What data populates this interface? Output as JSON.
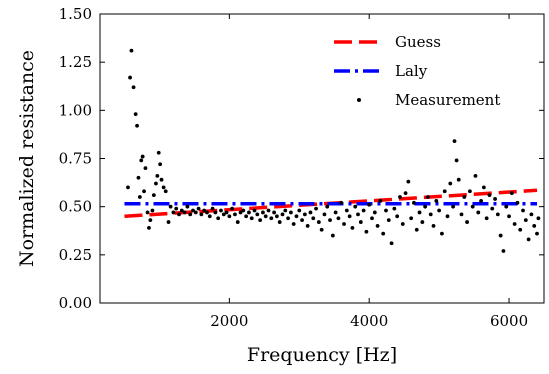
{
  "chart_data": {
    "type": "scatter",
    "xlabel": "Frequency [Hz]",
    "ylabel": "Normalized resistance",
    "xlim": [
      150,
      6500
    ],
    "ylim": [
      0,
      1.5
    ],
    "x_ticks": [
      2000,
      4000,
      6000
    ],
    "x_tick_labels": [
      "2000",
      "4000",
      "6000"
    ],
    "y_ticks": [
      0,
      0.25,
      0.5,
      0.75,
      1.0,
      1.25,
      1.5
    ],
    "y_tick_labels": [
      "0.00",
      "0.25",
      "0.50",
      "0.75",
      "1.00",
      "1.25",
      "1.50"
    ],
    "grid": false,
    "legend_position": "top-right",
    "series": [
      {
        "name": "Guess",
        "kind": "line",
        "style": "dashed",
        "color": "#ff0000",
        "x": [
          500,
          6400
        ],
        "y": [
          0.45,
          0.585
        ]
      },
      {
        "name": "Laly",
        "kind": "line",
        "style": "dash-dot",
        "color": "#0000ff",
        "x": [
          500,
          6400
        ],
        "y": [
          0.515,
          0.515
        ]
      },
      {
        "name": "Measurement",
        "kind": "scatter",
        "color": "#000000",
        "points": [
          [
            550,
            0.6
          ],
          [
            580,
            1.17
          ],
          [
            600,
            1.31
          ],
          [
            630,
            1.12
          ],
          [
            660,
            0.98
          ],
          [
            680,
            0.92
          ],
          [
            700,
            0.65
          ],
          [
            720,
            0.55
          ],
          [
            740,
            0.74
          ],
          [
            760,
            0.76
          ],
          [
            780,
            0.58
          ],
          [
            800,
            0.7
          ],
          [
            830,
            0.47
          ],
          [
            850,
            0.39
          ],
          [
            870,
            0.43
          ],
          [
            900,
            0.48
          ],
          [
            920,
            0.56
          ],
          [
            950,
            0.62
          ],
          [
            970,
            0.66
          ],
          [
            990,
            0.78
          ],
          [
            1010,
            0.72
          ],
          [
            1030,
            0.64
          ],
          [
            1060,
            0.6
          ],
          [
            1090,
            0.58
          ],
          [
            1130,
            0.42
          ],
          [
            1160,
            0.5
          ],
          [
            1200,
            0.47
          ],
          [
            1240,
            0.49
          ],
          [
            1280,
            0.46
          ],
          [
            1320,
            0.48
          ],
          [
            1360,
            0.47
          ],
          [
            1400,
            0.5
          ],
          [
            1440,
            0.46
          ],
          [
            1480,
            0.48
          ],
          [
            1520,
            0.47
          ],
          [
            1560,
            0.49
          ],
          [
            1600,
            0.46
          ],
          [
            1640,
            0.48
          ],
          [
            1680,
            0.47
          ],
          [
            1720,
            0.45
          ],
          [
            1760,
            0.49
          ],
          [
            1800,
            0.47
          ],
          [
            1840,
            0.44
          ],
          [
            1880,
            0.48
          ],
          [
            1920,
            0.46
          ],
          [
            1960,
            0.47
          ],
          [
            2000,
            0.45
          ],
          [
            2040,
            0.49
          ],
          [
            2080,
            0.46
          ],
          [
            2120,
            0.42
          ],
          [
            2160,
            0.47
          ],
          [
            2200,
            0.48
          ],
          [
            2240,
            0.45
          ],
          [
            2280,
            0.47
          ],
          [
            2320,
            0.44
          ],
          [
            2360,
            0.48
          ],
          [
            2400,
            0.46
          ],
          [
            2440,
            0.43
          ],
          [
            2480,
            0.47
          ],
          [
            2520,
            0.45
          ],
          [
            2560,
            0.48
          ],
          [
            2600,
            0.44
          ],
          [
            2640,
            0.47
          ],
          [
            2680,
            0.45
          ],
          [
            2720,
            0.42
          ],
          [
            2760,
            0.46
          ],
          [
            2800,
            0.48
          ],
          [
            2840,
            0.44
          ],
          [
            2880,
            0.47
          ],
          [
            2920,
            0.41
          ],
          [
            2960,
            0.45
          ],
          [
            3000,
            0.48
          ],
          [
            3040,
            0.43
          ],
          [
            3080,
            0.46
          ],
          [
            3120,
            0.4
          ],
          [
            3160,
            0.47
          ],
          [
            3200,
            0.44
          ],
          [
            3240,
            0.49
          ],
          [
            3280,
            0.42
          ],
          [
            3320,
            0.38
          ],
          [
            3360,
            0.46
          ],
          [
            3400,
            0.5
          ],
          [
            3440,
            0.43
          ],
          [
            3480,
            0.35
          ],
          [
            3520,
            0.47
          ],
          [
            3560,
            0.44
          ],
          [
            3600,
            0.52
          ],
          [
            3640,
            0.41
          ],
          [
            3680,
            0.48
          ],
          [
            3720,
            0.45
          ],
          [
            3760,
            0.39
          ],
          [
            3800,
            0.5
          ],
          [
            3840,
            0.46
          ],
          [
            3880,
            0.42
          ],
          [
            3920,
            0.48
          ],
          [
            3960,
            0.37
          ],
          [
            4000,
            0.51
          ],
          [
            4040,
            0.44
          ],
          [
            4080,
            0.47
          ],
          [
            4120,
            0.4
          ],
          [
            4160,
            0.53
          ],
          [
            4200,
            0.36
          ],
          [
            4240,
            0.48
          ],
          [
            4280,
            0.43
          ],
          [
            4320,
            0.31
          ],
          [
            4360,
            0.49
          ],
          [
            4400,
            0.45
          ],
          [
            4440,
            0.55
          ],
          [
            4480,
            0.41
          ],
          [
            4520,
            0.57
          ],
          [
            4560,
            0.63
          ],
          [
            4600,
            0.44
          ],
          [
            4640,
            0.52
          ],
          [
            4680,
            0.38
          ],
          [
            4720,
            0.47
          ],
          [
            4760,
            0.42
          ],
          [
            4800,
            0.5
          ],
          [
            4840,
            0.55
          ],
          [
            4880,
            0.46
          ],
          [
            4920,
            0.4
          ],
          [
            4960,
            0.53
          ],
          [
            5000,
            0.48
          ],
          [
            5040,
            0.36
          ],
          [
            5080,
            0.58
          ],
          [
            5120,
            0.45
          ],
          [
            5160,
            0.62
          ],
          [
            5200,
            0.5
          ],
          [
            5220,
            0.84
          ],
          [
            5250,
            0.74
          ],
          [
            5280,
            0.64
          ],
          [
            5320,
            0.46
          ],
          [
            5360,
            0.55
          ],
          [
            5400,
            0.42
          ],
          [
            5440,
            0.58
          ],
          [
            5480,
            0.5
          ],
          [
            5520,
            0.66
          ],
          [
            5560,
            0.47
          ],
          [
            5600,
            0.53
          ],
          [
            5640,
            0.6
          ],
          [
            5680,
            0.44
          ],
          [
            5720,
            0.56
          ],
          [
            5760,
            0.49
          ],
          [
            5800,
            0.54
          ],
          [
            5840,
            0.46
          ],
          [
            5880,
            0.35
          ],
          [
            5920,
            0.27
          ],
          [
            5960,
            0.5
          ],
          [
            6000,
            0.45
          ],
          [
            6040,
            0.57
          ],
          [
            6080,
            0.41
          ],
          [
            6120,
            0.52
          ],
          [
            6160,
            0.38
          ],
          [
            6200,
            0.48
          ],
          [
            6240,
            0.43
          ],
          [
            6280,
            0.33
          ],
          [
            6320,
            0.46
          ],
          [
            6360,
            0.4
          ],
          [
            6400,
            0.36
          ],
          [
            6420,
            0.44
          ]
        ]
      }
    ]
  }
}
